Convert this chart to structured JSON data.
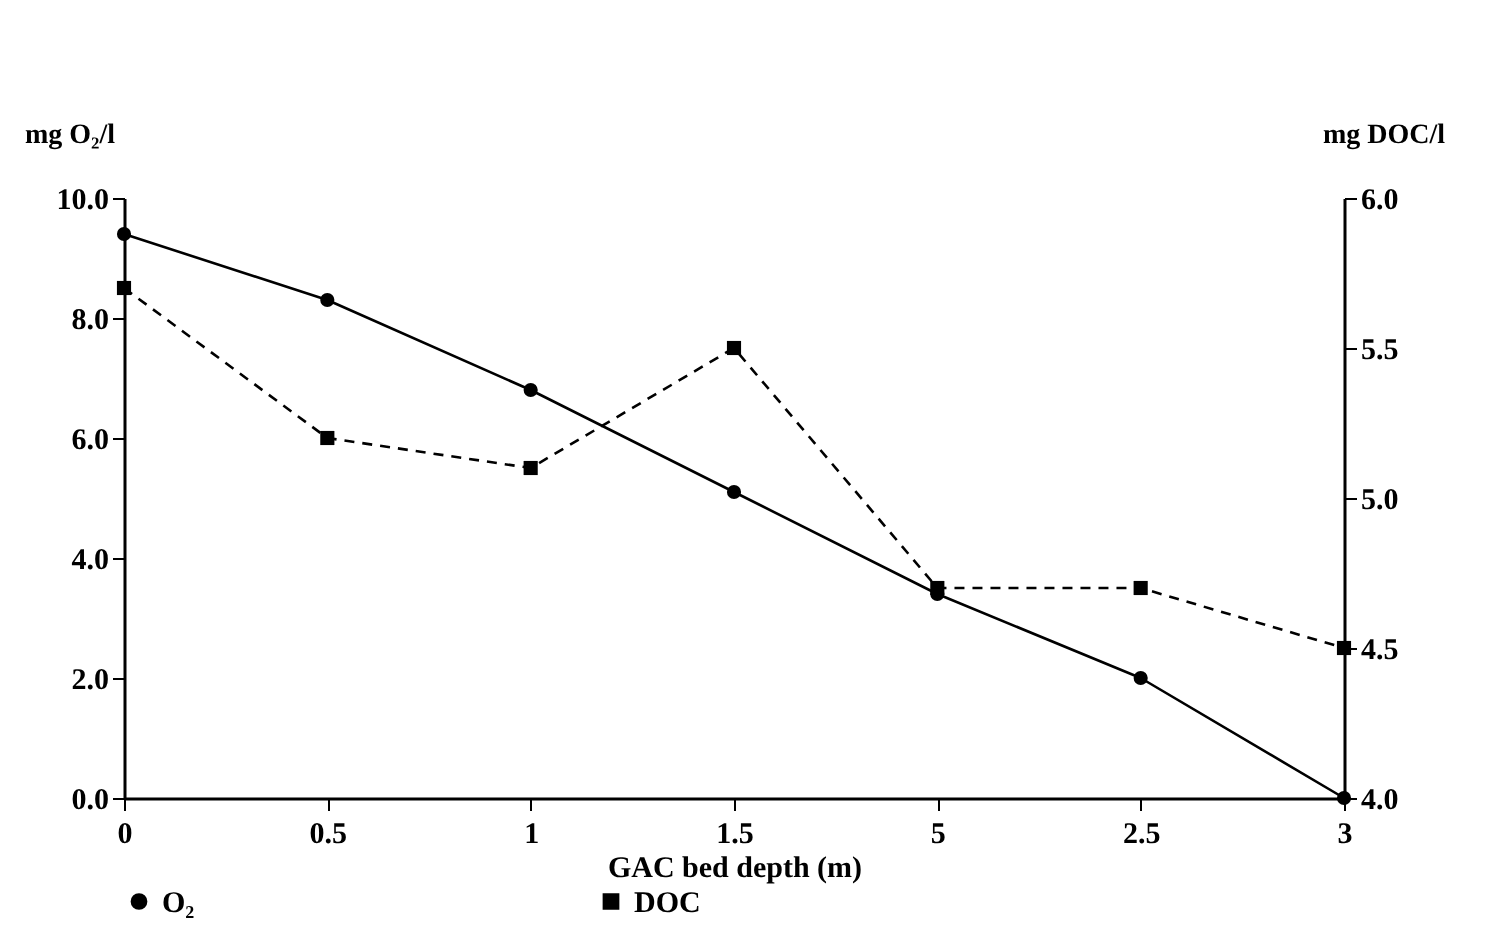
{
  "chart_data": {
    "type": "line",
    "xlabel": "GAC bed depth (m)",
    "ylabel": "mg O₂/l",
    "y2label": "mg DOC/l",
    "categories": [
      "0",
      "0.5",
      "1",
      "1.5",
      "5",
      "2.5",
      "3"
    ],
    "series": [
      {
        "name": "O₂",
        "color": "#000000",
        "values": [
          9.4,
          8.3,
          6.8,
          5.1,
          3.4,
          2.0,
          0.0
        ],
        "marker": "circle",
        "line_style": "solid"
      },
      {
        "name": "DOC",
        "color": "#000000",
        "values": [
          5.7,
          5.2,
          5.1,
          5.5,
          4.7,
          4.7,
          4.5
        ],
        "marker": "square",
        "line_style": "dashed",
        "axis": "y2"
      }
    ],
    "ylim": [
      0,
      10
    ],
    "yticks": [
      {
        "value": 0,
        "label": "0.0"
      },
      {
        "value": 2,
        "label": "2.0"
      },
      {
        "value": 4,
        "label": "4.0"
      },
      {
        "value": 6,
        "label": "6.0"
      },
      {
        "value": 8,
        "label": "8.0"
      },
      {
        "value": 10,
        "label": "10.0"
      }
    ],
    "y2lim": [
      4,
      6
    ],
    "y2ticks": [
      {
        "value": 4,
        "label": "4.0"
      },
      {
        "value": 4.5,
        "label": "4.5"
      },
      {
        "value": 5,
        "label": "5.0"
      },
      {
        "value": 5.5,
        "label": "5.5"
      },
      {
        "value": 6,
        "label": "6.0"
      }
    ],
    "grid": false,
    "legend": "bottom"
  }
}
